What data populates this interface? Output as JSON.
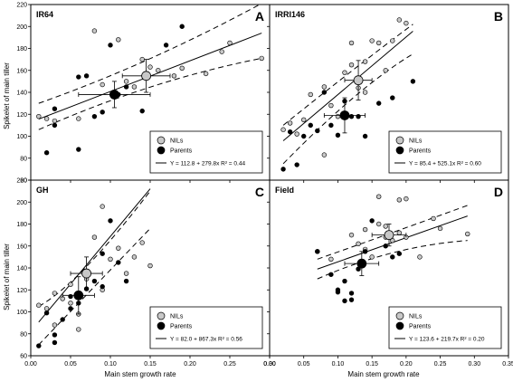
{
  "figure": {
    "ylabel": "Spikelet of main tiller",
    "xlabel": "Main stem growth rate"
  },
  "chart_data": [
    {
      "type": "scatter",
      "panel": "IR64",
      "letter": "A",
      "xlim": [
        0,
        0.3
      ],
      "ylim": [
        60,
        220
      ],
      "xticks": [],
      "yticks": [
        "220",
        "200",
        "180",
        "160",
        "140",
        "120",
        "100",
        "80",
        "60"
      ],
      "legend": {
        "nils": "NILs",
        "parents": "Parents",
        "equation": "Y = 112.8 + 279.8x R² = 0.44"
      },
      "fit": {
        "intercept": 112.8,
        "slope": 279.8,
        "r2": 0.44
      },
      "ci": {
        "lower": [
          [
            0.01,
            106
          ],
          [
            0.15,
            151
          ],
          [
            0.29,
            171
          ]
        ],
        "upper": [
          [
            0.01,
            130
          ],
          [
            0.15,
            166
          ],
          [
            0.29,
            221
          ]
        ]
      },
      "series": [
        {
          "name": "NILs",
          "x": [
            0.01,
            0.02,
            0.03,
            0.06,
            0.08,
            0.11,
            0.13,
            0.14,
            0.15,
            0.16,
            0.18,
            0.19,
            0.22,
            0.24,
            0.25,
            0.29,
            0.09,
            0.12
          ],
          "y": [
            118,
            116,
            114,
            116,
            196,
            188,
            145,
            170,
            163,
            160,
            155,
            162,
            157,
            177,
            185,
            171,
            147,
            150
          ]
        },
        {
          "name": "Parents",
          "x": [
            0.02,
            0.03,
            0.03,
            0.06,
            0.07,
            0.08,
            0.1,
            0.11,
            0.12,
            0.14,
            0.17,
            0.19,
            0.06,
            0.09
          ],
          "y": [
            85,
            110,
            125,
            88,
            155,
            118,
            183,
            138,
            145,
            123,
            183,
            200,
            154,
            122
          ]
        }
      ],
      "means": [
        {
          "group": "NILs",
          "x": 0.145,
          "y": 155,
          "xerr": 0.03,
          "yerr": 15
        },
        {
          "group": "Parents",
          "x": 0.105,
          "y": 138,
          "xerr": 0.045,
          "yerr": 12
        }
      ]
    },
    {
      "type": "scatter",
      "panel": "IRRI146",
      "letter": "B",
      "xlim": [
        0,
        0.35
      ],
      "ylim": [
        60,
        220
      ],
      "xticks": [],
      "yticks": [],
      "legend": {
        "nils": "NILs",
        "parents": "Parents",
        "equation": "Y = 85.4 + 525.1x R² = 0.60"
      },
      "fit": {
        "intercept": 85.4,
        "slope": 525.1,
        "r2": 0.6
      },
      "ci": {
        "lower": [
          [
            0.02,
            75
          ],
          [
            0.13,
            145
          ],
          [
            0.21,
            175
          ]
        ],
        "upper": [
          [
            0.02,
            110
          ],
          [
            0.13,
            165
          ],
          [
            0.21,
            202
          ]
        ]
      },
      "series": [
        {
          "name": "NILs",
          "x": [
            0.02,
            0.03,
            0.04,
            0.05,
            0.06,
            0.08,
            0.09,
            0.1,
            0.11,
            0.12,
            0.13,
            0.14,
            0.15,
            0.16,
            0.17,
            0.18,
            0.19,
            0.2,
            0.12,
            0.14,
            0.08
          ],
          "y": [
            106,
            112,
            102,
            115,
            138,
            83,
            128,
            118,
            158,
            165,
            144,
            168,
            187,
            185,
            160,
            187,
            206,
            203,
            185,
            140,
            145
          ]
        },
        {
          "name": "Parents",
          "x": [
            0.02,
            0.03,
            0.05,
            0.06,
            0.07,
            0.08,
            0.1,
            0.11,
            0.13,
            0.14,
            0.16,
            0.18,
            0.21,
            0.04,
            0.09,
            0.12
          ],
          "y": [
            70,
            104,
            100,
            110,
            105,
            140,
            101,
            132,
            118,
            100,
            130,
            135,
            150,
            74,
            110,
            118
          ]
        }
      ],
      "means": [
        {
          "group": "NILs",
          "x": 0.13,
          "y": 151,
          "xerr": 0.02,
          "yerr": 18
        },
        {
          "group": "Parents",
          "x": 0.11,
          "y": 119,
          "xerr": 0.03,
          "yerr": 16
        }
      ]
    },
    {
      "type": "scatter",
      "panel": "GH",
      "letter": "C",
      "xlim": [
        0,
        0.3
      ],
      "ylim": [
        60,
        220
      ],
      "xticks": [
        "0.00",
        "0.05",
        "0.10",
        "0.15",
        "0.20",
        "0.25",
        "0.30"
      ],
      "yticks": [
        "220",
        "200",
        "180",
        "160",
        "140",
        "120",
        "100",
        "80",
        "60"
      ],
      "legend": {
        "nils": "NILs",
        "parents": "Parents",
        "equation": "Y = 82.0 + 867.3x R² = 0.56"
      },
      "fit": {
        "intercept": 82.0,
        "slope": 867.3,
        "r2": 0.56
      },
      "ci": {
        "lower": [
          [
            0.01,
            70
          ],
          [
            0.06,
            108
          ],
          [
            0.15,
            176
          ]
        ],
        "upper": [
          [
            0.01,
            105
          ],
          [
            0.06,
            125
          ],
          [
            0.15,
            210
          ]
        ]
      },
      "series": [
        {
          "name": "NILs",
          "x": [
            0.01,
            0.02,
            0.03,
            0.04,
            0.05,
            0.06,
            0.06,
            0.07,
            0.08,
            0.09,
            0.1,
            0.11,
            0.12,
            0.13,
            0.14,
            0.15,
            0.03,
            0.05,
            0.09
          ],
          "y": [
            106,
            103,
            117,
            112,
            125,
            98,
            84,
            130,
            168,
            196,
            148,
            158,
            135,
            150,
            163,
            142,
            88,
            108,
            120
          ]
        },
        {
          "name": "Parents",
          "x": [
            0.01,
            0.02,
            0.03,
            0.04,
            0.05,
            0.06,
            0.07,
            0.08,
            0.09,
            0.1,
            0.11,
            0.12,
            0.03,
            0.05,
            0.09
          ],
          "y": [
            69,
            99,
            79,
            93,
            114,
            108,
            121,
            128,
            153,
            183,
            145,
            128,
            72,
            103,
            123
          ]
        }
      ],
      "means": [
        {
          "group": "NILs",
          "x": 0.07,
          "y": 135,
          "xerr": 0.02,
          "yerr": 15
        },
        {
          "group": "Parents",
          "x": 0.06,
          "y": 115,
          "xerr": 0.02,
          "yerr": 17
        }
      ]
    },
    {
      "type": "scatter",
      "panel": "Field",
      "letter": "D",
      "xlim": [
        0,
        0.35
      ],
      "ylim": [
        60,
        220
      ],
      "xticks": [
        "0.00",
        "0.05",
        "0.10",
        "0.15",
        "0.20",
        "0.25",
        "0.30",
        "0.35"
      ],
      "yticks": [],
      "legend": {
        "nils": "NILs",
        "parents": "Parents",
        "equation": "Y = 123.6 + 219.7x R² = 0.20"
      },
      "fit": {
        "intercept": 123.6,
        "slope": 219.7,
        "r2": 0.2
      },
      "ci": {
        "lower": [
          [
            0.07,
            130
          ],
          [
            0.18,
            160
          ],
          [
            0.29,
            165
          ]
        ],
        "upper": [
          [
            0.07,
            148
          ],
          [
            0.18,
            172
          ],
          [
            0.29,
            197
          ]
        ]
      },
      "series": [
        {
          "name": "NILs",
          "x": [
            0.07,
            0.09,
            0.12,
            0.13,
            0.14,
            0.15,
            0.16,
            0.17,
            0.17,
            0.18,
            0.19,
            0.19,
            0.2,
            0.22,
            0.24,
            0.25,
            0.29,
            0.16,
            0.14,
            0.2
          ],
          "y": [
            155,
            148,
            170,
            162,
            175,
            150,
            205,
            178,
            168,
            165,
            172,
            202,
            203,
            150,
            185,
            176,
            171,
            180,
            157,
            168
          ]
        },
        {
          "name": "Parents",
          "x": [
            0.07,
            0.09,
            0.1,
            0.11,
            0.11,
            0.12,
            0.13,
            0.14,
            0.15,
            0.17,
            0.18,
            0.19,
            0.1,
            0.12
          ],
          "y": [
            155,
            134,
            120,
            110,
            128,
            117,
            139,
            155,
            183,
            160,
            150,
            153,
            118,
            111
          ]
        }
      ],
      "means": [
        {
          "group": "NILs",
          "x": 0.175,
          "y": 170,
          "xerr": 0.025,
          "yerr": 10
        },
        {
          "group": "Parents",
          "x": 0.135,
          "y": 144,
          "xerr": 0.025,
          "yerr": 11
        }
      ]
    }
  ]
}
